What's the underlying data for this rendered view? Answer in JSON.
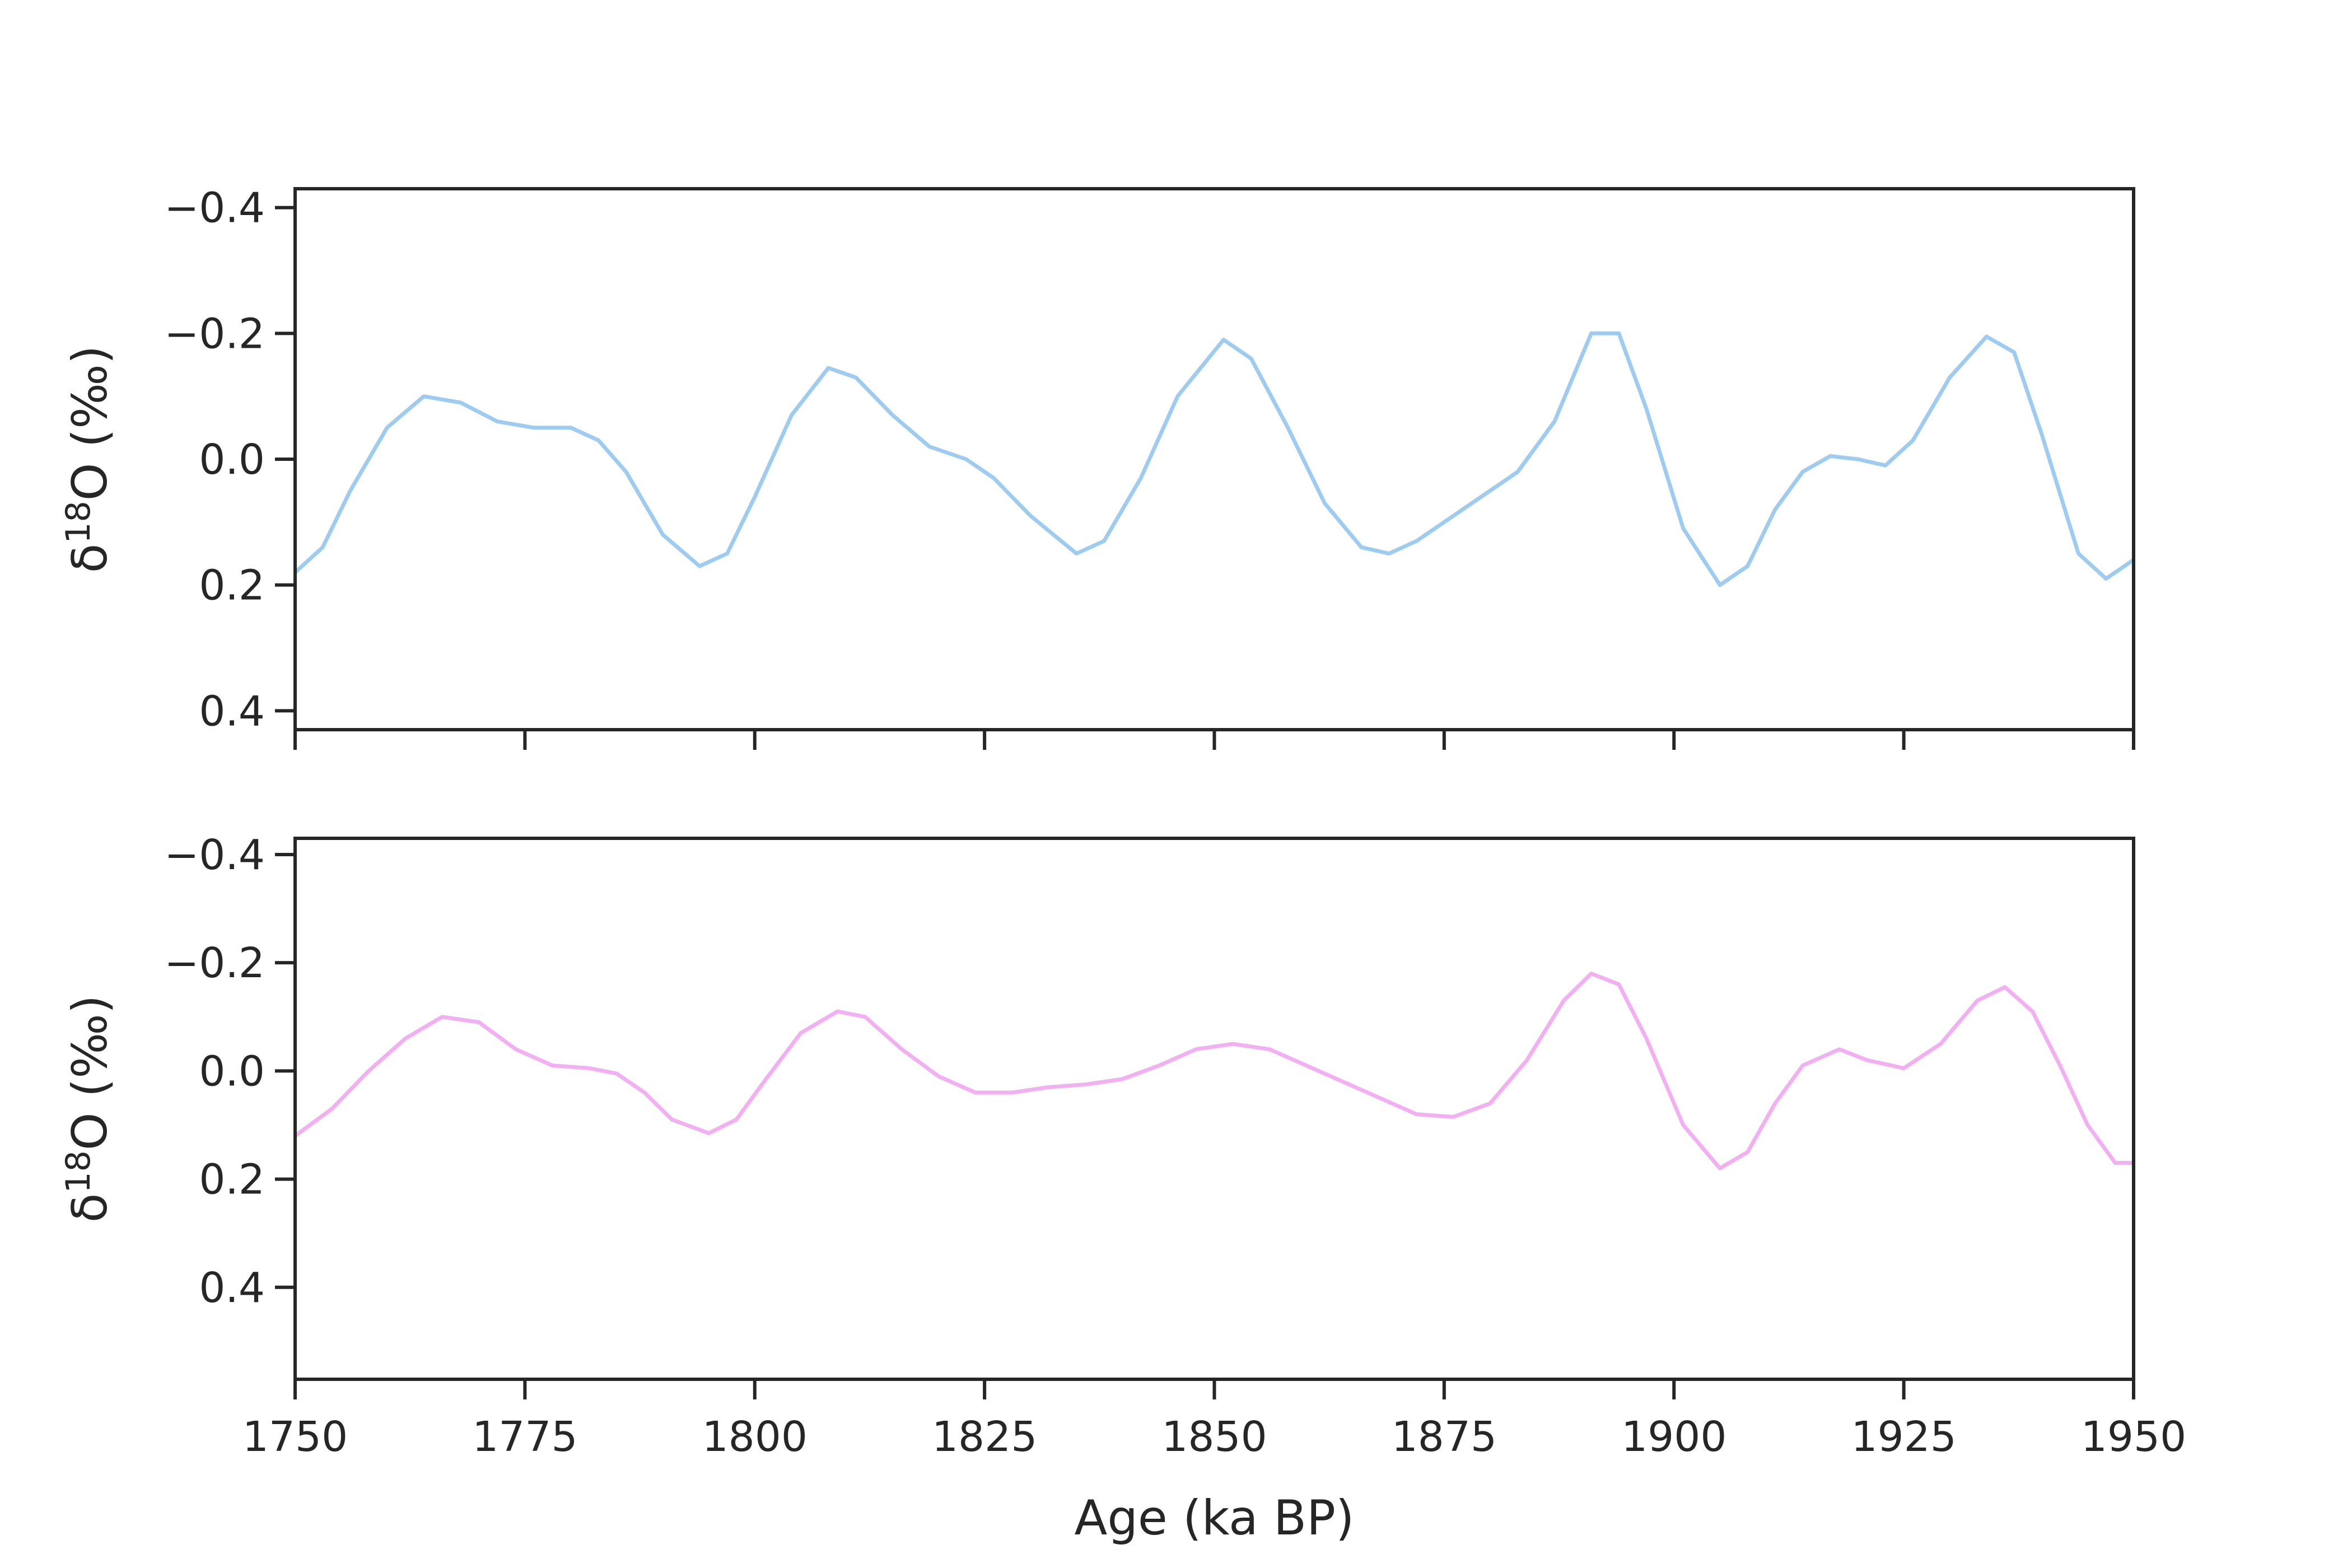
{
  "chart_data": [
    {
      "type": "line",
      "title": "",
      "xlabel": "",
      "ylabel_main": "δ",
      "ylabel_sup": "18",
      "ylabel_tail": "O (‰)",
      "xlim": [
        1750,
        1950
      ],
      "ylim": [
        0.43,
        -0.43
      ],
      "y_inverted": true,
      "grid": false,
      "xticks": [
        1750,
        1775,
        1800,
        1825,
        1850,
        1875,
        1900,
        1925,
        1950
      ],
      "xtick_labels_visible": false,
      "yticks": [
        -0.4,
        -0.2,
        0.0,
        0.2,
        0.4
      ],
      "ytick_labels": [
        "−0.4",
        "−0.2",
        "0.0",
        "0.2",
        "0.4"
      ],
      "series": [
        {
          "color": "#9ecbf0",
          "x": [
            1750,
            1753,
            1756,
            1760,
            1764,
            1768,
            1772,
            1776,
            1780,
            1783,
            1786,
            1790,
            1794,
            1797,
            1800,
            1804,
            1808,
            1811,
            1815,
            1819,
            1823,
            1826,
            1830,
            1835,
            1838,
            1842,
            1846,
            1851,
            1854,
            1858,
            1862,
            1866,
            1869,
            1872,
            1876,
            1880,
            1883,
            1887,
            1891,
            1894,
            1897,
            1901,
            1905,
            1908,
            1911,
            1914,
            1917,
            1920,
            1923,
            1926,
            1930,
            1934,
            1937,
            1940,
            1944,
            1947,
            1950
          ],
          "y": [
            0.18,
            0.14,
            0.05,
            -0.05,
            -0.1,
            -0.09,
            -0.06,
            -0.05,
            -0.05,
            -0.03,
            0.02,
            0.12,
            0.17,
            0.15,
            0.06,
            -0.07,
            -0.145,
            -0.13,
            -0.07,
            -0.02,
            0.0,
            0.03,
            0.09,
            0.15,
            0.13,
            0.03,
            -0.1,
            -0.19,
            -0.16,
            -0.05,
            0.07,
            0.14,
            0.15,
            0.13,
            0.09,
            0.05,
            0.02,
            -0.06,
            -0.2,
            -0.2,
            -0.08,
            0.11,
            0.2,
            0.17,
            0.08,
            0.02,
            -0.005,
            0.0,
            0.01,
            -0.03,
            -0.13,
            -0.195,
            -0.17,
            -0.04,
            0.15,
            0.19,
            0.16
          ]
        }
      ]
    },
    {
      "type": "line",
      "title": "",
      "xlabel": "Age (ka BP)",
      "ylabel_main": "δ",
      "ylabel_sup": "18",
      "ylabel_tail": "O (‰)",
      "xlim": [
        1750,
        1950
      ],
      "ylim": [
        0.57,
        -0.43
      ],
      "y_inverted": true,
      "grid": false,
      "xticks": [
        1750,
        1775,
        1800,
        1825,
        1850,
        1875,
        1900,
        1925,
        1950
      ],
      "xtick_labels": [
        "1750",
        "1775",
        "1800",
        "1825",
        "1850",
        "1875",
        "1900",
        "1925",
        "1950"
      ],
      "xtick_labels_visible": true,
      "yticks": [
        -0.4,
        -0.2,
        0.0,
        0.2,
        0.4
      ],
      "ytick_labels": [
        "−0.4",
        "−0.2",
        "0.0",
        "0.2",
        "0.4"
      ],
      "series": [
        {
          "color": "#f2b0f2",
          "x": [
            1750,
            1754,
            1758,
            1762,
            1766,
            1770,
            1774,
            1778,
            1782,
            1785,
            1788,
            1791,
            1795,
            1798,
            1801,
            1805,
            1809,
            1812,
            1816,
            1820,
            1824,
            1828,
            1832,
            1836,
            1840,
            1844,
            1848,
            1852,
            1856,
            1860,
            1864,
            1868,
            1872,
            1876,
            1880,
            1884,
            1888,
            1891,
            1894,
            1897,
            1901,
            1905,
            1908,
            1911,
            1914,
            1918,
            1921,
            1925,
            1929,
            1933,
            1936,
            1939,
            1942,
            1945,
            1948,
            1950
          ],
          "y": [
            0.12,
            0.07,
            0.0,
            -0.06,
            -0.1,
            -0.09,
            -0.04,
            -0.01,
            -0.005,
            0.005,
            0.04,
            0.09,
            0.115,
            0.09,
            0.02,
            -0.07,
            -0.11,
            -0.1,
            -0.04,
            0.01,
            0.04,
            0.04,
            0.03,
            0.025,
            0.015,
            -0.01,
            -0.04,
            -0.05,
            -0.04,
            -0.01,
            0.02,
            0.05,
            0.08,
            0.085,
            0.06,
            -0.02,
            -0.13,
            -0.18,
            -0.16,
            -0.06,
            0.1,
            0.18,
            0.15,
            0.06,
            -0.01,
            -0.04,
            -0.02,
            -0.005,
            -0.05,
            -0.13,
            -0.155,
            -0.11,
            -0.01,
            0.1,
            0.17,
            0.17
          ]
        }
      ]
    }
  ]
}
